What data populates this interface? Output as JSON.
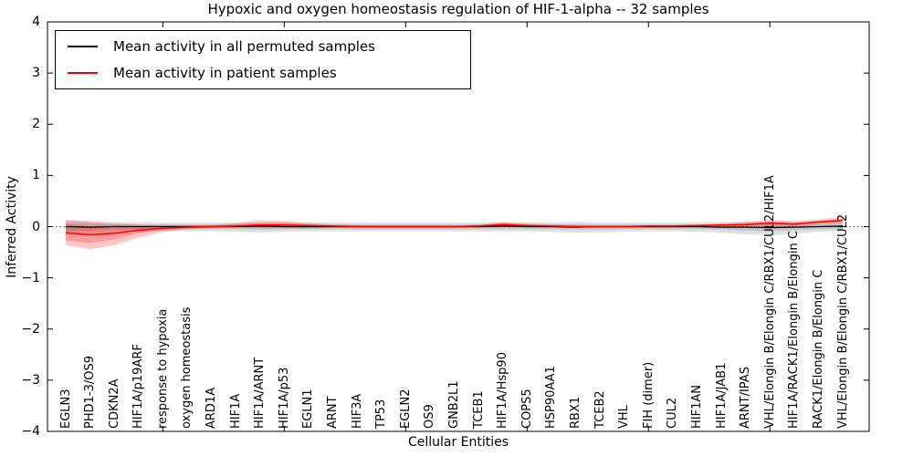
{
  "figure": {
    "title": "Hypoxic and oxygen homeostasis regulation of HIF-1-alpha -- 32 samples",
    "xlabel": "Cellular Entities",
    "ylabel": "Inferred Activity"
  },
  "legend": {
    "entries": [
      {
        "label": "Mean activity in all permuted samples",
        "color": "#000000"
      },
      {
        "label": "Mean activity in patient samples",
        "color": "#ff0000"
      }
    ]
  },
  "colors": {
    "frame": "#000000",
    "background": "#ffffff",
    "permuted_band": "#000000",
    "patient_band": "#ff0000"
  },
  "chart_data": {
    "type": "line",
    "title": "Hypoxic and oxygen homeostasis regulation of HIF-1-alpha -- 32 samples",
    "xlabel": "Cellular Entities",
    "ylabel": "Inferred Activity",
    "ylim": [
      -4,
      4
    ],
    "grid": false,
    "legend_position": "upper left",
    "zero_reference_line": 0,
    "yticks": [
      4,
      3,
      2,
      1,
      0,
      -1,
      -2,
      -3,
      -4
    ],
    "ytick_labels": [
      "4",
      "3",
      "2",
      "1",
      "0",
      "−1",
      "−2",
      "−3",
      "−4"
    ],
    "xtick_positions": [
      4,
      9,
      14,
      19,
      24,
      29
    ],
    "categories": [
      "EGLN3",
      "PHD1-3/OS9",
      "CDKN2A",
      "HIF1A/p19ARF",
      "response to hypoxia",
      "oxygen homeostasis",
      "ARD1A",
      "HIF1A",
      "HIF1A/ARNT",
      "HIF1A/p53",
      "EGLN1",
      "ARNT",
      "HIF3A",
      "TP53",
      "EGLN2",
      "OS9",
      "GNB2L1",
      "TCEB1",
      "HIF1A/Hsp90",
      "COPS5",
      "HSP90AA1",
      "RBX1",
      "TCEB2",
      "VHL",
      "FIH (dimer)",
      "CUL2",
      "HIF1AN",
      "HIF1A/JAB1",
      "ARNT/IPAS",
      "VHL/Elongin B/Elongin C/RBX1/CUL2/HIF1A",
      "HIF1A/RACK1/Elongin B/Elongin C",
      "RACK1/Elongin B/Elongin C",
      "VHL/Elongin B/Elongin C/RBX1/CUL2"
    ],
    "series": [
      {
        "name": "Mean activity in all permuted samples",
        "color": "#000000",
        "line_width": 1.2,
        "band_opacity": 0.12,
        "values": [
          0,
          -0.01,
          0,
          0,
          0,
          0,
          0,
          0,
          0.01,
          0,
          0,
          0,
          0,
          0,
          0,
          0,
          0,
          0,
          0.01,
          0,
          0,
          -0.01,
          0,
          0,
          0,
          0,
          0,
          -0.01,
          -0.01,
          -0.02,
          -0.01,
          0,
          0.01
        ],
        "band_outer_upper": [
          0.13,
          0.11,
          0.09,
          0.08,
          0.08,
          0.08,
          0.08,
          0.08,
          0.08,
          0.08,
          0.08,
          0.08,
          0.08,
          0.08,
          0.08,
          0.08,
          0.08,
          0.08,
          0.08,
          0.08,
          0.08,
          0.09,
          0.08,
          0.08,
          0.08,
          0.08,
          0.08,
          0.09,
          0.09,
          0.09,
          0.08,
          0.08,
          0.09
        ],
        "band_outer_lower": [
          -0.16,
          -0.14,
          -0.12,
          -0.1,
          -0.09,
          -0.09,
          -0.09,
          -0.1,
          -0.11,
          -0.1,
          -0.09,
          -0.09,
          -0.09,
          -0.09,
          -0.09,
          -0.09,
          -0.09,
          -0.09,
          -0.09,
          -0.09,
          -0.1,
          -0.12,
          -0.11,
          -0.1,
          -0.09,
          -0.09,
          -0.1,
          -0.12,
          -0.15,
          -0.17,
          -0.14,
          -0.1,
          -0.09
        ],
        "band_inner_upper": [
          0.07,
          0.06,
          0.05,
          0.04,
          0.04,
          0.04,
          0.04,
          0.04,
          0.04,
          0.04,
          0.04,
          0.04,
          0.04,
          0.04,
          0.04,
          0.04,
          0.04,
          0.04,
          0.04,
          0.04,
          0.04,
          0.05,
          0.04,
          0.04,
          0.04,
          0.04,
          0.04,
          0.05,
          0.05,
          0.05,
          0.04,
          0.04,
          0.05
        ],
        "band_inner_lower": [
          -0.09,
          -0.08,
          -0.06,
          -0.05,
          -0.05,
          -0.05,
          -0.05,
          -0.05,
          -0.06,
          -0.05,
          -0.05,
          -0.05,
          -0.05,
          -0.05,
          -0.05,
          -0.05,
          -0.05,
          -0.05,
          -0.05,
          -0.05,
          -0.05,
          -0.06,
          -0.06,
          -0.05,
          -0.05,
          -0.05,
          -0.05,
          -0.06,
          -0.08,
          -0.09,
          -0.07,
          -0.05,
          -0.05
        ]
      },
      {
        "name": "Mean activity in patient samples",
        "color": "#ff0000",
        "line_width": 1.5,
        "band_opacity": 0.22,
        "values": [
          -0.12,
          -0.16,
          -0.13,
          -0.07,
          -0.03,
          -0.01,
          0,
          0.01,
          0.03,
          0.03,
          0.02,
          0.01,
          0,
          0,
          0,
          0,
          0,
          0.01,
          0.04,
          0.02,
          0.01,
          0,
          0,
          0,
          0.01,
          0.01,
          0.02,
          0.03,
          0.04,
          0.07,
          0.05,
          0.09,
          0.12
        ],
        "band_outer_upper": [
          0.13,
          0.09,
          0.06,
          0.04,
          0.03,
          0.03,
          0.03,
          0.07,
          0.12,
          0.11,
          0.07,
          0.04,
          0.03,
          0.02,
          0.02,
          0.02,
          0.02,
          0.04,
          0.09,
          0.06,
          0.04,
          0.03,
          0.02,
          0.02,
          0.03,
          0.03,
          0.04,
          0.06,
          0.09,
          0.13,
          0.11,
          0.14,
          0.19
        ],
        "band_outer_lower": [
          -0.36,
          -0.44,
          -0.36,
          -0.22,
          -0.1,
          -0.05,
          -0.03,
          -0.02,
          -0.03,
          -0.03,
          -0.03,
          -0.02,
          -0.02,
          -0.02,
          -0.02,
          -0.02,
          -0.02,
          -0.02,
          -0.01,
          -0.01,
          -0.02,
          -0.02,
          -0.02,
          -0.02,
          -0.02,
          -0.02,
          -0.01,
          0,
          0,
          0.01,
          0,
          0.03,
          0.05
        ],
        "band_inner_upper": [
          0.05,
          0,
          -0.02,
          -0.01,
          0,
          0.01,
          0.01,
          0.04,
          0.07,
          0.07,
          0.04,
          0.02,
          0.01,
          0.01,
          0.01,
          0.01,
          0.01,
          0.02,
          0.06,
          0.04,
          0.02,
          0.01,
          0.01,
          0.01,
          0.02,
          0.02,
          0.03,
          0.04,
          0.06,
          0.1,
          0.08,
          0.11,
          0.15
        ],
        "band_inner_lower": [
          -0.27,
          -0.32,
          -0.25,
          -0.13,
          -0.06,
          -0.03,
          -0.02,
          -0.01,
          -0.01,
          -0.01,
          -0.01,
          -0.01,
          -0.01,
          -0.01,
          -0.01,
          -0.01,
          -0.01,
          -0.01,
          0.01,
          0,
          -0.01,
          -0.01,
          -0.01,
          -0.01,
          -0.01,
          0,
          0,
          0.01,
          0.02,
          0.04,
          0.03,
          0.06,
          0.09
        ]
      }
    ]
  }
}
